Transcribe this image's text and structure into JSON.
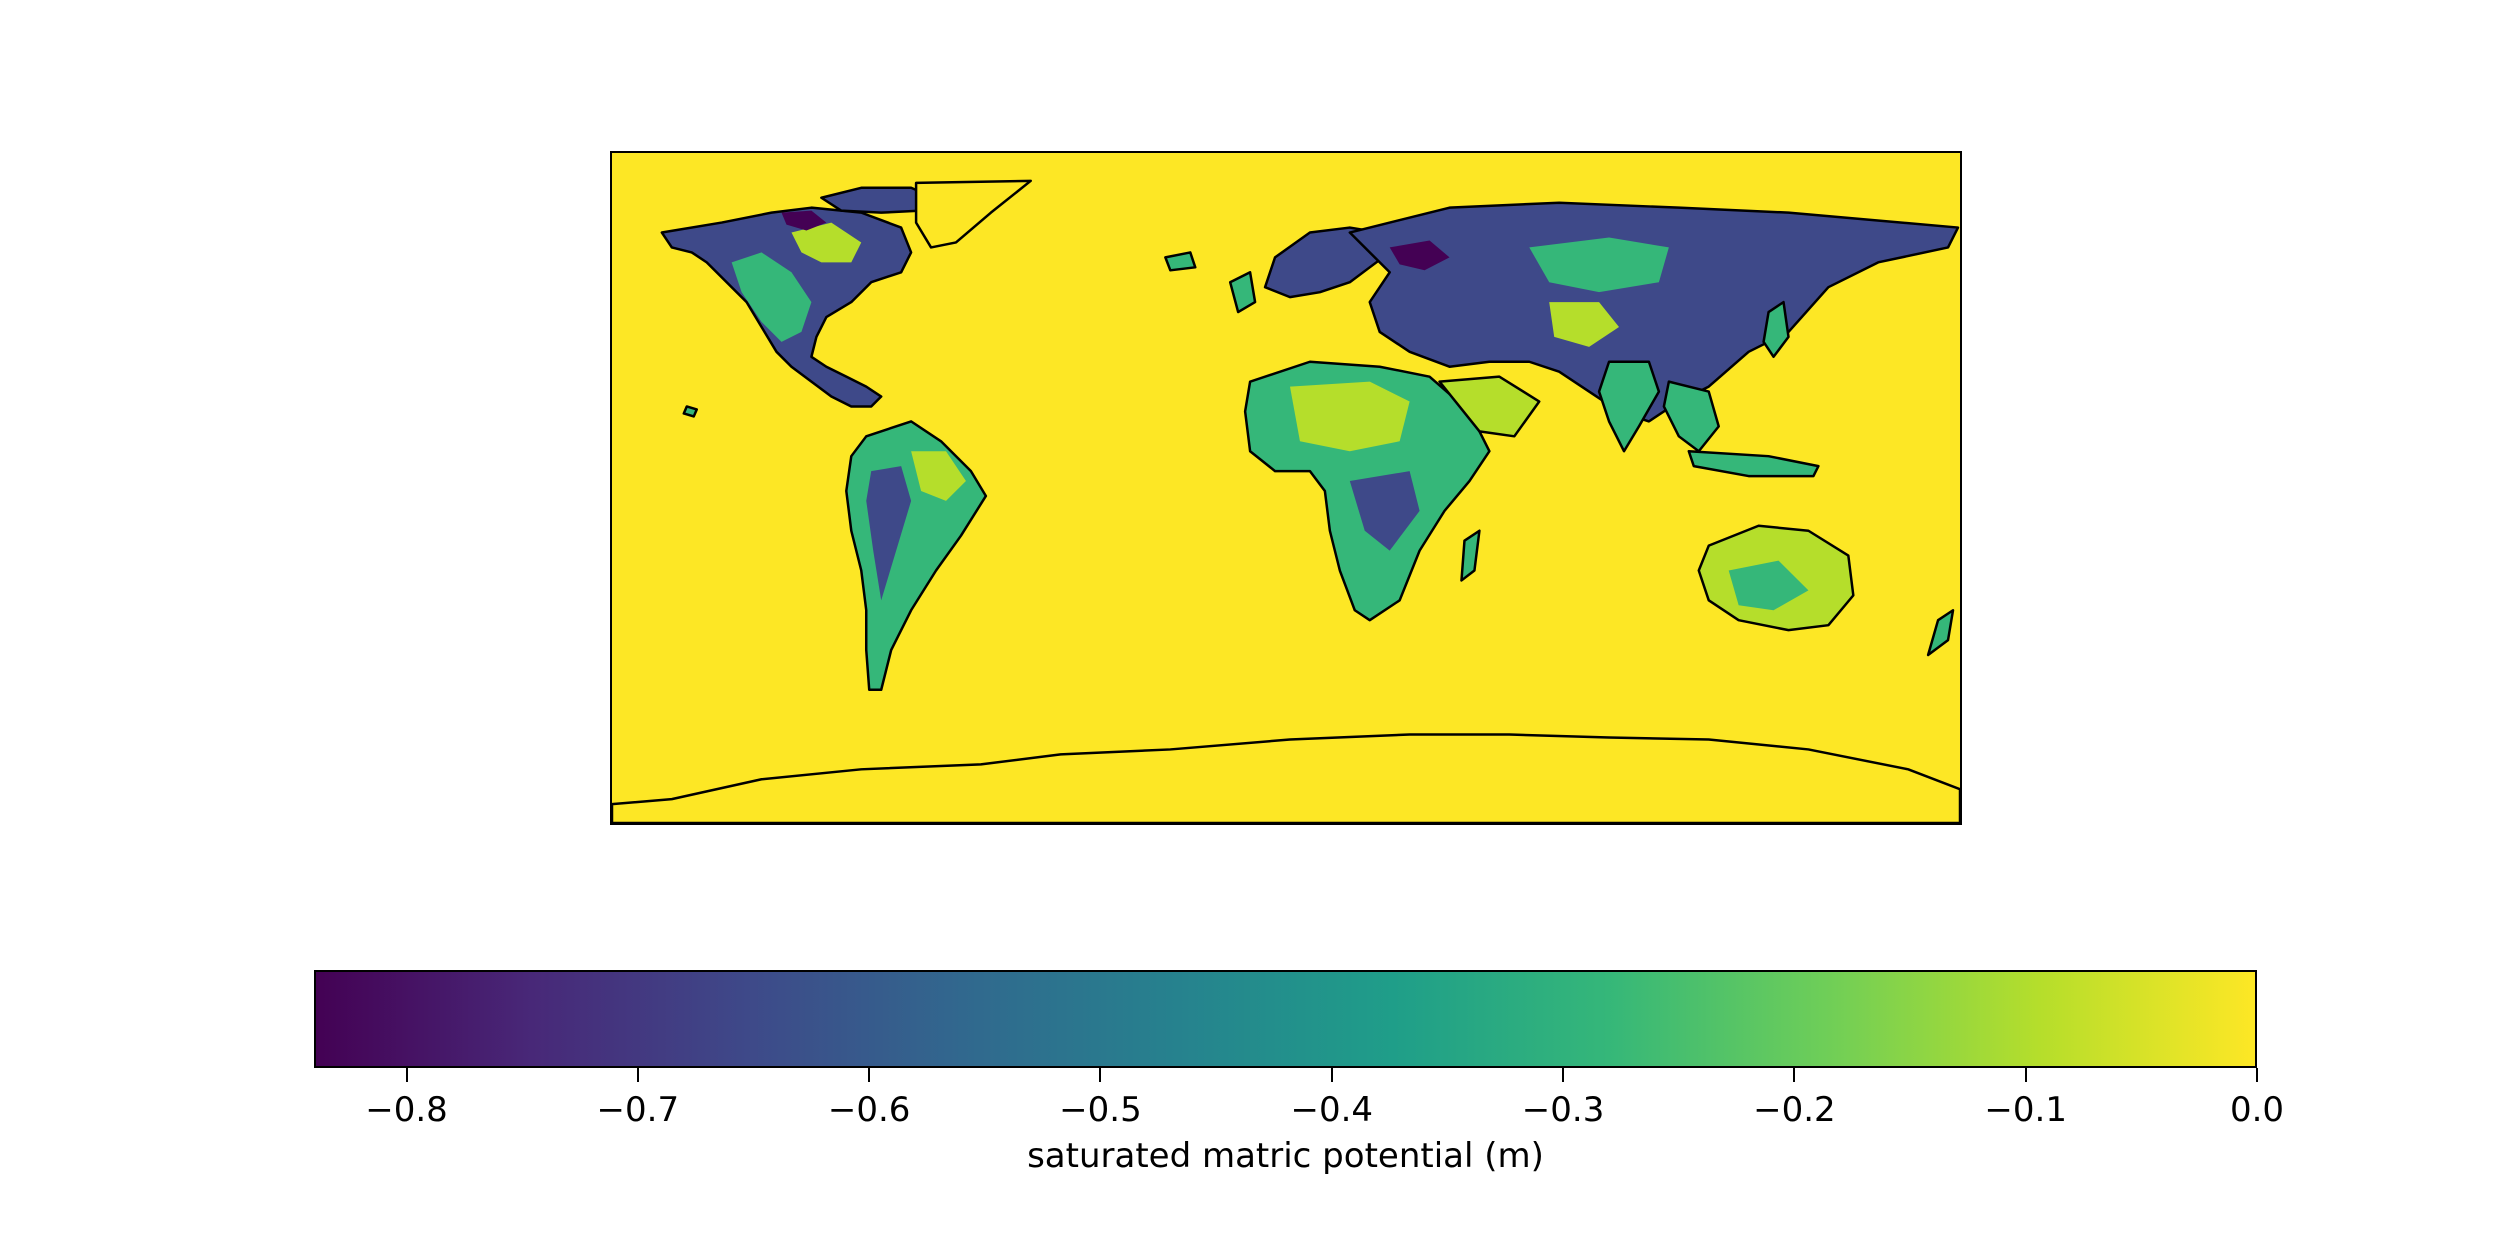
{
  "colormap": {
    "name": "viridis",
    "stops": [
      "#440154",
      "#482878",
      "#3e4989",
      "#31688e",
      "#26828e",
      "#1f9e89",
      "#35b779",
      "#6ece58",
      "#b5de2b",
      "#fde725"
    ]
  },
  "map": {
    "background_color": "#fde725",
    "coastline_color": "#000000",
    "land_colors": {
      "dark_purple": "#440154",
      "blue": "#3e4989",
      "teal": "#26828e",
      "green": "#35b779",
      "light_green": "#6ece58",
      "yellow_green": "#b5de2b"
    }
  },
  "colorbar": {
    "label": "saturated matric potential (m)",
    "min": -0.84,
    "max": 0.0,
    "ticks": [
      {
        "value": -0.8,
        "label": "−0.8"
      },
      {
        "value": -0.7,
        "label": "−0.7"
      },
      {
        "value": -0.6,
        "label": "−0.6"
      },
      {
        "value": -0.5,
        "label": "−0.5"
      },
      {
        "value": -0.4,
        "label": "−0.4"
      },
      {
        "value": -0.3,
        "label": "−0.3"
      },
      {
        "value": -0.2,
        "label": "−0.2"
      },
      {
        "value": -0.1,
        "label": "−0.1"
      },
      {
        "value": 0.0,
        "label": "0.0"
      }
    ]
  }
}
